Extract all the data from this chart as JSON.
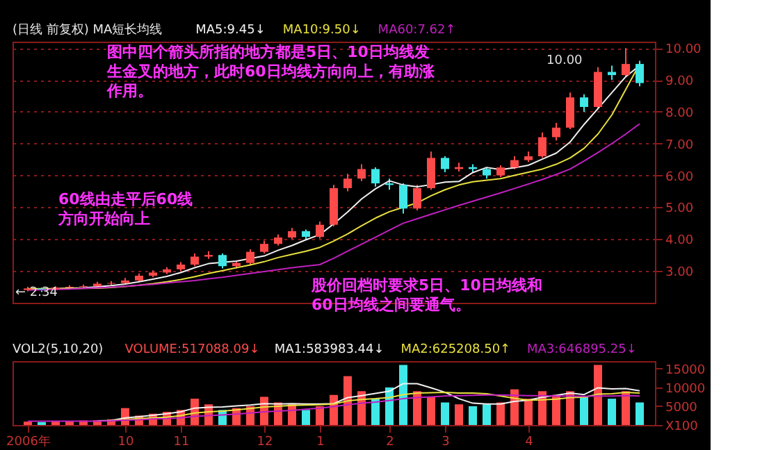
{
  "chart_data": [
    {
      "type": "candlestick",
      "title": "(日线 前复权) MA短长均线",
      "legend": "top",
      "grid": "y",
      "tick_labels": "y",
      "categories": [
        null,
        null,
        null,
        null,
        null,
        null,
        null,
        null,
        null,
        null,
        null,
        null,
        null,
        null,
        null,
        null,
        null,
        null,
        null,
        null,
        null,
        null,
        null,
        null,
        null,
        null,
        null,
        null,
        null,
        null,
        null,
        null,
        null,
        null,
        null,
        null,
        null,
        null,
        null,
        null,
        null,
        null,
        null,
        null,
        null
      ],
      "ohlc": [
        [
          2.4,
          2.5,
          2.36,
          2.45
        ],
        [
          2.45,
          2.48,
          2.34,
          2.42
        ],
        [
          2.42,
          2.52,
          2.4,
          2.48
        ],
        [
          2.48,
          2.55,
          2.44,
          2.5
        ],
        [
          2.5,
          2.57,
          2.46,
          2.52
        ],
        [
          2.52,
          2.66,
          2.48,
          2.6
        ],
        [
          2.6,
          2.68,
          2.55,
          2.62
        ],
        [
          2.62,
          2.78,
          2.58,
          2.7
        ],
        [
          2.7,
          2.92,
          2.66,
          2.85
        ],
        [
          2.85,
          3.02,
          2.8,
          2.95
        ],
        [
          2.95,
          3.12,
          2.9,
          3.05
        ],
        [
          3.05,
          3.28,
          3.0,
          3.2
        ],
        [
          3.2,
          3.55,
          3.15,
          3.45
        ],
        [
          3.45,
          3.62,
          3.38,
          3.5
        ],
        [
          3.5,
          3.55,
          3.08,
          3.15
        ],
        [
          3.15,
          3.32,
          3.08,
          3.25
        ],
        [
          3.25,
          3.68,
          3.2,
          3.6
        ],
        [
          3.6,
          3.95,
          3.55,
          3.85
        ],
        [
          3.85,
          4.15,
          3.8,
          4.05
        ],
        [
          4.05,
          4.35,
          4.0,
          4.25
        ],
        [
          4.25,
          4.3,
          3.98,
          4.07
        ],
        [
          4.07,
          4.55,
          4.02,
          4.45
        ],
        [
          4.45,
          5.7,
          4.4,
          5.6
        ],
        [
          5.6,
          6.05,
          5.5,
          5.9
        ],
        [
          5.9,
          6.35,
          5.82,
          6.2
        ],
        [
          6.2,
          6.25,
          5.65,
          5.75
        ],
        [
          5.75,
          5.9,
          5.55,
          5.7
        ],
        [
          5.7,
          5.75,
          4.8,
          4.96
        ],
        [
          4.96,
          5.7,
          4.9,
          5.6
        ],
        [
          5.6,
          6.75,
          5.55,
          6.55
        ],
        [
          6.55,
          6.6,
          6.1,
          6.2
        ],
        [
          6.2,
          6.4,
          6.12,
          6.26
        ],
        [
          6.26,
          6.35,
          6.1,
          6.2
        ],
        [
          6.2,
          6.25,
          5.9,
          6.0
        ],
        [
          6.0,
          6.32,
          5.95,
          6.25
        ],
        [
          6.25,
          6.6,
          6.2,
          6.48
        ],
        [
          6.48,
          6.75,
          6.42,
          6.6
        ],
        [
          6.6,
          7.35,
          6.55,
          7.2
        ],
        [
          7.2,
          7.65,
          7.1,
          7.5
        ],
        [
          7.5,
          8.6,
          7.45,
          8.45
        ],
        [
          8.45,
          8.55,
          8.0,
          8.15
        ],
        [
          8.15,
          9.4,
          8.1,
          9.25
        ],
        [
          9.25,
          9.45,
          9.0,
          9.15
        ],
        [
          9.15,
          10.0,
          9.1,
          9.5
        ],
        [
          9.5,
          9.6,
          8.8,
          8.9
        ]
      ],
      "colors": [
        "#ff4a4a",
        "#40e8e8",
        "#ff4a4a",
        "#ff4a4a",
        "#ff4a4a",
        "#ff4a4a",
        "#ff4a4a",
        "#ff4a4a",
        "#ff4a4a",
        "#ff4a4a",
        "#ff4a4a",
        "#ff4a4a",
        "#ff4a4a",
        "#ff4a4a",
        "#40e8e8",
        "#ff4a4a",
        "#ff4a4a",
        "#ff4a4a",
        "#ff4a4a",
        "#ff4a4a",
        "#40e8e8",
        "#ff4a4a",
        "#ff4a4a",
        "#ff4a4a",
        "#ff4a4a",
        "#40e8e8",
        "#40e8e8",
        "#40e8e8",
        "#ff4a4a",
        "#ff4a4a",
        "#40e8e8",
        "#ff4a4a",
        "#40e8e8",
        "#40e8e8",
        "#ff4a4a",
        "#ff4a4a",
        "#ff4a4a",
        "#ff4a4a",
        "#ff4a4a",
        "#ff4a4a",
        "#40e8e8",
        "#ff4a4a",
        "#40e8e8",
        "#ff4a4a",
        "#40e8e8"
      ],
      "series": [
        {
          "name": "MA5:9.45↓",
          "type": "line",
          "color": "#f0f0f0",
          "values": [
            2.43,
            2.43,
            2.44,
            2.46,
            2.47,
            2.5,
            2.54,
            2.59,
            2.66,
            2.74,
            2.83,
            2.95,
            3.1,
            3.23,
            3.27,
            3.31,
            3.39,
            3.47,
            3.65,
            3.8,
            3.98,
            4.14,
            4.48,
            4.85,
            5.26,
            5.58,
            5.83,
            5.7,
            5.64,
            5.71,
            5.79,
            5.81,
            6.09,
            6.25,
            6.18,
            6.24,
            6.32,
            6.51,
            6.7,
            7.05,
            7.6,
            8.1,
            8.6,
            9.1,
            9.45
          ]
        },
        {
          "name": "MA10:9.50↓",
          "type": "line",
          "color": "#e8e040",
          "values": [
            2.44,
            2.44,
            2.44,
            2.45,
            2.45,
            2.46,
            2.48,
            2.51,
            2.55,
            2.6,
            2.66,
            2.73,
            2.82,
            2.92,
            3.01,
            3.1,
            3.19,
            3.29,
            3.42,
            3.52,
            3.62,
            3.74,
            3.94,
            4.16,
            4.42,
            4.66,
            4.86,
            5.0,
            5.14,
            5.36,
            5.55,
            5.7,
            5.8,
            5.85,
            5.9,
            6.0,
            6.1,
            6.2,
            6.35,
            6.55,
            6.85,
            7.3,
            7.9,
            8.7,
            9.5
          ]
        },
        {
          "name": "MA60:7.62↑",
          "type": "line",
          "color": "#c020c0",
          "values": [
            2.4,
            2.41,
            2.42,
            2.43,
            2.45,
            2.47,
            2.49,
            2.52,
            2.55,
            2.58,
            2.62,
            2.66,
            2.7,
            2.75,
            2.8,
            2.86,
            2.92,
            2.98,
            3.04,
            3.1,
            3.15,
            3.2,
            3.4,
            3.62,
            3.84,
            4.06,
            4.28,
            4.5,
            4.64,
            4.78,
            4.92,
            5.06,
            5.19,
            5.32,
            5.45,
            5.59,
            5.73,
            5.87,
            6.03,
            6.2,
            6.45,
            6.72,
            7.0,
            7.3,
            7.62
          ]
        }
      ],
      "ylim": [
        2.0,
        10.2
      ],
      "yticks": [
        {
          "value": 3,
          "label": "3.00"
        },
        {
          "value": 4,
          "label": "4.00"
        },
        {
          "value": 5,
          "label": "5.00"
        },
        {
          "value": 6,
          "label": "6.00"
        },
        {
          "value": 7,
          "label": "7.00"
        },
        {
          "value": 8,
          "label": "8.00"
        },
        {
          "value": 9,
          "label": "9.00"
        },
        {
          "value": 10,
          "label": "10.00"
        }
      ],
      "annotations": [
        "图中四个箭头所指的地方都是5日、10日均线发生金叉的地方，此时60日均线方向向上，有助涨作用。",
        "60线由走平后60线方向开始向上",
        "股价回档时要求5日、10日均线和60日均线之间要通气。",
        "10.00",
        {
          "text": "← 2.34",
          "y": 2.34
        }
      ]
    },
    {
      "type": "bar",
      "title": "VOL2(5,10,20)",
      "legend": "top",
      "categories": [
        "2006年",
        null,
        null,
        null,
        null,
        null,
        null,
        "10",
        null,
        null,
        null,
        "11",
        null,
        null,
        null,
        null,
        null,
        "12",
        null,
        null,
        null,
        "1",
        null,
        null,
        null,
        null,
        "2",
        null,
        null,
        null,
        "3",
        null,
        null,
        null,
        null,
        null,
        "4",
        null,
        null,
        null,
        null,
        null,
        null,
        null,
        null
      ],
      "series": [
        {
          "name": "VOLUME:517088.09↓",
          "type": "bar",
          "colors": [
            "#ff4a4a",
            "#40e8e8",
            "#ff4a4a",
            "#ff4a4a",
            "#ff4a4a",
            "#ff4a4a",
            "#ff4a4a",
            "#ff4a4a",
            "#ff4a4a",
            "#ff4a4a",
            "#ff4a4a",
            "#ff4a4a",
            "#ff4a4a",
            "#ff4a4a",
            "#40e8e8",
            "#ff4a4a",
            "#ff4a4a",
            "#ff4a4a",
            "#ff4a4a",
            "#ff4a4a",
            "#40e8e8",
            "#ff4a4a",
            "#ff4a4a",
            "#ff4a4a",
            "#ff4a4a",
            "#40e8e8",
            "#40e8e8",
            "#40e8e8",
            "#ff4a4a",
            "#ff4a4a",
            "#40e8e8",
            "#ff4a4a",
            "#40e8e8",
            "#40e8e8",
            "#ff4a4a",
            "#ff4a4a",
            "#ff4a4a",
            "#ff4a4a",
            "#ff4a4a",
            "#ff4a4a",
            "#40e8e8",
            "#ff4a4a",
            "#40e8e8",
            "#ff4a4a",
            "#40e8e8"
          ],
          "values": [
            900,
            800,
            1000,
            1100,
            1200,
            1300,
            1500,
            4500,
            2500,
            3000,
            3500,
            4000,
            7000,
            5500,
            4000,
            4500,
            5000,
            7500,
            6000,
            5500,
            4000,
            5000,
            8000,
            13000,
            9000,
            7000,
            10000,
            16000,
            9000,
            7500,
            6000,
            5500,
            5000,
            5500,
            6000,
            9500,
            7000,
            9000,
            8000,
            9000,
            7500,
            16000,
            7000,
            9000,
            6000
          ]
        },
        {
          "name": "MA1:583983.44↓",
          "type": "line",
          "color": "#f0f0f0",
          "values": [
            null,
            null,
            null,
            null,
            null,
            1100,
            1200,
            1900,
            2200,
            2600,
            3000,
            3500,
            4500,
            4700,
            4800,
            5100,
            5300,
            5700,
            5600,
            5700,
            5600,
            5600,
            5700,
            7300,
            7800,
            8400,
            9000,
            11000,
            11000,
            9900,
            8700,
            7000,
            5800,
            5600,
            5600,
            6300,
            6600,
            7400,
            7900,
            8500,
            8100,
            9900,
            9600,
            9700,
            9100
          ]
        },
        {
          "name": "MA2:625208.50↑",
          "type": "line",
          "color": "#e8e040",
          "values": [
            null,
            null,
            null,
            null,
            null,
            null,
            1100,
            1500,
            1700,
            1900,
            2100,
            2500,
            3200,
            3500,
            3700,
            4000,
            4400,
            4800,
            5000,
            5200,
            5300,
            5400,
            5600,
            6400,
            6800,
            7000,
            7300,
            8100,
            8500,
            8600,
            8700,
            8500,
            8500,
            8300,
            7700,
            7100,
            6600,
            6700,
            6900,
            7300,
            7400,
            8200,
            8300,
            8700,
            8500
          ]
        },
        {
          "name": "MA3:646895.25↓",
          "type": "line",
          "color": "#c020c0",
          "values": [
            1000,
            1000,
            1000,
            1000,
            1000,
            1000,
            1100,
            1300,
            1400,
            1600,
            1700,
            1900,
            2300,
            2500,
            2700,
            2900,
            3200,
            3500,
            3700,
            3900,
            4200,
            4500,
            4900,
            5400,
            5800,
            6100,
            6500,
            7000,
            7300,
            7500,
            7700,
            7800,
            7900,
            8000,
            8000,
            7900,
            7800,
            7800,
            7700,
            7700,
            7600,
            7700,
            7700,
            7800,
            7700
          ]
        }
      ],
      "ylim": [
        0,
        17000
      ],
      "yticks": [
        {
          "value": 0,
          "label": "X100"
        },
        5000,
        10000,
        15000
      ]
    }
  ]
}
